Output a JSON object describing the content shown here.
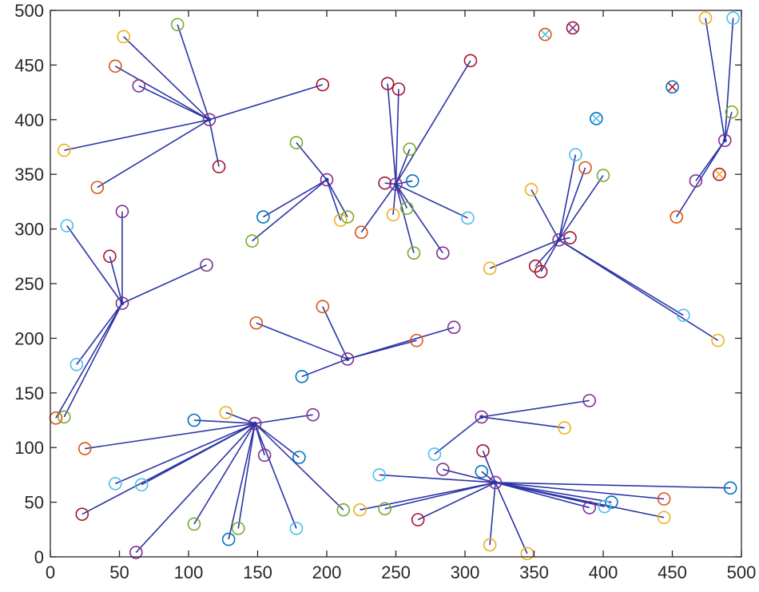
{
  "chart_data": {
    "type": "scatter",
    "title": "",
    "xlabel": "",
    "ylabel": "",
    "xlim": [
      0,
      500
    ],
    "ylim": [
      0,
      500
    ],
    "xticks": [
      0,
      50,
      100,
      150,
      200,
      250,
      300,
      350,
      400,
      450,
      500
    ],
    "yticks": [
      0,
      50,
      100,
      150,
      200,
      250,
      300,
      350,
      400,
      450,
      500
    ],
    "palette": {
      "blue": "#0072BD",
      "orange": "#D95319",
      "yellow": "#EDB120",
      "purple": "#7E2F8E",
      "green": "#77AC30",
      "cyan": "#4DBEEE",
      "red": "#A2142F",
      "link": "#2B35A6"
    },
    "clusters": [
      {
        "head": [
          115,
          400
        ],
        "members": [
          {
            "x": 53,
            "y": 476,
            "c": "yellow"
          },
          {
            "x": 92,
            "y": 487,
            "c": "green"
          },
          {
            "x": 47,
            "y": 449,
            "c": "orange"
          },
          {
            "x": 64,
            "y": 431,
            "c": "purple"
          },
          {
            "x": 197,
            "y": 432,
            "c": "red"
          },
          {
            "x": 10,
            "y": 372,
            "c": "yellow"
          },
          {
            "x": 34,
            "y": 338,
            "c": "orange"
          },
          {
            "x": 122,
            "y": 357,
            "c": "red"
          }
        ]
      },
      {
        "head": [
          52,
          232
        ],
        "members": [
          {
            "x": 12,
            "y": 303,
            "c": "cyan"
          },
          {
            "x": 52,
            "y": 316,
            "c": "purple"
          },
          {
            "x": 43,
            "y": 275,
            "c": "red"
          },
          {
            "x": 113,
            "y": 267,
            "c": "purple"
          },
          {
            "x": 19,
            "y": 176,
            "c": "cyan"
          },
          {
            "x": 10,
            "y": 128,
            "c": "green"
          },
          {
            "x": 4,
            "y": 127,
            "c": "orange"
          }
        ]
      },
      {
        "head": [
          200,
          345
        ],
        "members": [
          {
            "x": 178,
            "y": 379,
            "c": "green"
          },
          {
            "x": 154,
            "y": 311,
            "c": "blue"
          },
          {
            "x": 146,
            "y": 289,
            "c": "green"
          },
          {
            "x": 210,
            "y": 308,
            "c": "yellow"
          },
          {
            "x": 215,
            "y": 311,
            "c": "green"
          }
        ]
      },
      {
        "head": [
          250,
          341
        ],
        "members": [
          {
            "x": 244,
            "y": 433,
            "c": "red"
          },
          {
            "x": 252,
            "y": 428,
            "c": "red"
          },
          {
            "x": 304,
            "y": 454,
            "c": "red"
          },
          {
            "x": 260,
            "y": 373,
            "c": "green"
          },
          {
            "x": 262,
            "y": 344,
            "c": "blue"
          },
          {
            "x": 242,
            "y": 342,
            "c": "red"
          },
          {
            "x": 302,
            "y": 310,
            "c": "cyan"
          },
          {
            "x": 258,
            "y": 319,
            "c": "green"
          },
          {
            "x": 248,
            "y": 313,
            "c": "yellow"
          },
          {
            "x": 225,
            "y": 297,
            "c": "orange"
          },
          {
            "x": 263,
            "y": 278,
            "c": "green"
          },
          {
            "x": 284,
            "y": 278,
            "c": "purple"
          }
        ]
      },
      {
        "head": [
          368,
          290
        ],
        "members": [
          {
            "x": 380,
            "y": 368,
            "c": "cyan"
          },
          {
            "x": 387,
            "y": 356,
            "c": "orange"
          },
          {
            "x": 400,
            "y": 349,
            "c": "green"
          },
          {
            "x": 348,
            "y": 336,
            "c": "yellow"
          },
          {
            "x": 376,
            "y": 292,
            "c": "red"
          },
          {
            "x": 318,
            "y": 264,
            "c": "yellow"
          },
          {
            "x": 351,
            "y": 266,
            "c": "red"
          },
          {
            "x": 355,
            "y": 261,
            "c": "red"
          },
          {
            "x": 458,
            "y": 221,
            "c": "cyan"
          },
          {
            "x": 483,
            "y": 198,
            "c": "yellow"
          }
        ]
      },
      {
        "head": [
          488,
          381
        ],
        "members": [
          {
            "x": 474,
            "y": 493,
            "c": "yellow"
          },
          {
            "x": 494,
            "y": 493,
            "c": "cyan"
          },
          {
            "x": 493,
            "y": 407,
            "c": "green"
          },
          {
            "x": 467,
            "y": 344,
            "c": "purple"
          },
          {
            "x": 453,
            "y": 311,
            "c": "orange"
          }
        ]
      },
      {
        "head": [
          215,
          181
        ],
        "members": [
          {
            "x": 197,
            "y": 229,
            "c": "orange"
          },
          {
            "x": 149,
            "y": 214,
            "c": "orange"
          },
          {
            "x": 292,
            "y": 210,
            "c": "purple"
          },
          {
            "x": 265,
            "y": 198,
            "c": "orange"
          },
          {
            "x": 182,
            "y": 165,
            "c": "blue"
          }
        ]
      },
      {
        "head": [
          148,
          122
        ],
        "members": [
          {
            "x": 127,
            "y": 132,
            "c": "yellow"
          },
          {
            "x": 104,
            "y": 125,
            "c": "blue"
          },
          {
            "x": 190,
            "y": 130,
            "c": "purple"
          },
          {
            "x": 25,
            "y": 99,
            "c": "orange"
          },
          {
            "x": 155,
            "y": 93,
            "c": "purple"
          },
          {
            "x": 180,
            "y": 91,
            "c": "blue"
          },
          {
            "x": 47,
            "y": 67,
            "c": "cyan"
          },
          {
            "x": 66,
            "y": 66,
            "c": "cyan"
          },
          {
            "x": 212,
            "y": 43,
            "c": "green"
          },
          {
            "x": 23,
            "y": 39,
            "c": "red"
          },
          {
            "x": 104,
            "y": 30,
            "c": "green"
          },
          {
            "x": 136,
            "y": 26,
            "c": "green"
          },
          {
            "x": 178,
            "y": 26,
            "c": "cyan"
          },
          {
            "x": 129,
            "y": 16,
            "c": "blue"
          },
          {
            "x": 62,
            "y": 4,
            "c": "purple"
          }
        ]
      },
      {
        "head": [
          312,
          128
        ],
        "members": [
          {
            "x": 390,
            "y": 143,
            "c": "purple"
          },
          {
            "x": 372,
            "y": 118,
            "c": "yellow"
          },
          {
            "x": 278,
            "y": 94,
            "c": "cyan"
          }
        ]
      },
      {
        "head": [
          322,
          68
        ],
        "members": [
          {
            "x": 313,
            "y": 97,
            "c": "red"
          },
          {
            "x": 284,
            "y": 80,
            "c": "purple"
          },
          {
            "x": 312,
            "y": 78,
            "c": "blue"
          },
          {
            "x": 238,
            "y": 75,
            "c": "cyan"
          },
          {
            "x": 492,
            "y": 63,
            "c": "blue"
          },
          {
            "x": 444,
            "y": 53,
            "c": "orange"
          },
          {
            "x": 406,
            "y": 50,
            "c": "blue"
          },
          {
            "x": 401,
            "y": 46,
            "c": "cyan"
          },
          {
            "x": 390,
            "y": 45,
            "c": "purple"
          },
          {
            "x": 224,
            "y": 43,
            "c": "yellow"
          },
          {
            "x": 242,
            "y": 44,
            "c": "green"
          },
          {
            "x": 444,
            "y": 36,
            "c": "yellow"
          },
          {
            "x": 266,
            "y": 34,
            "c": "red"
          },
          {
            "x": 318,
            "y": 11,
            "c": "yellow"
          },
          {
            "x": 345,
            "y": 3,
            "c": "yellow"
          }
        ]
      }
    ],
    "isolated": [
      {
        "x": 358,
        "y": 478,
        "c": "orange",
        "mark": "cyan"
      },
      {
        "x": 378,
        "y": 484,
        "c": "red",
        "mark": "purple"
      },
      {
        "x": 450,
        "y": 430,
        "c": "blue",
        "mark": "red"
      },
      {
        "x": 395,
        "y": 401,
        "c": "blue",
        "mark": "cyan"
      },
      {
        "x": 484,
        "y": 350,
        "c": "red",
        "mark": "yellow"
      }
    ]
  }
}
